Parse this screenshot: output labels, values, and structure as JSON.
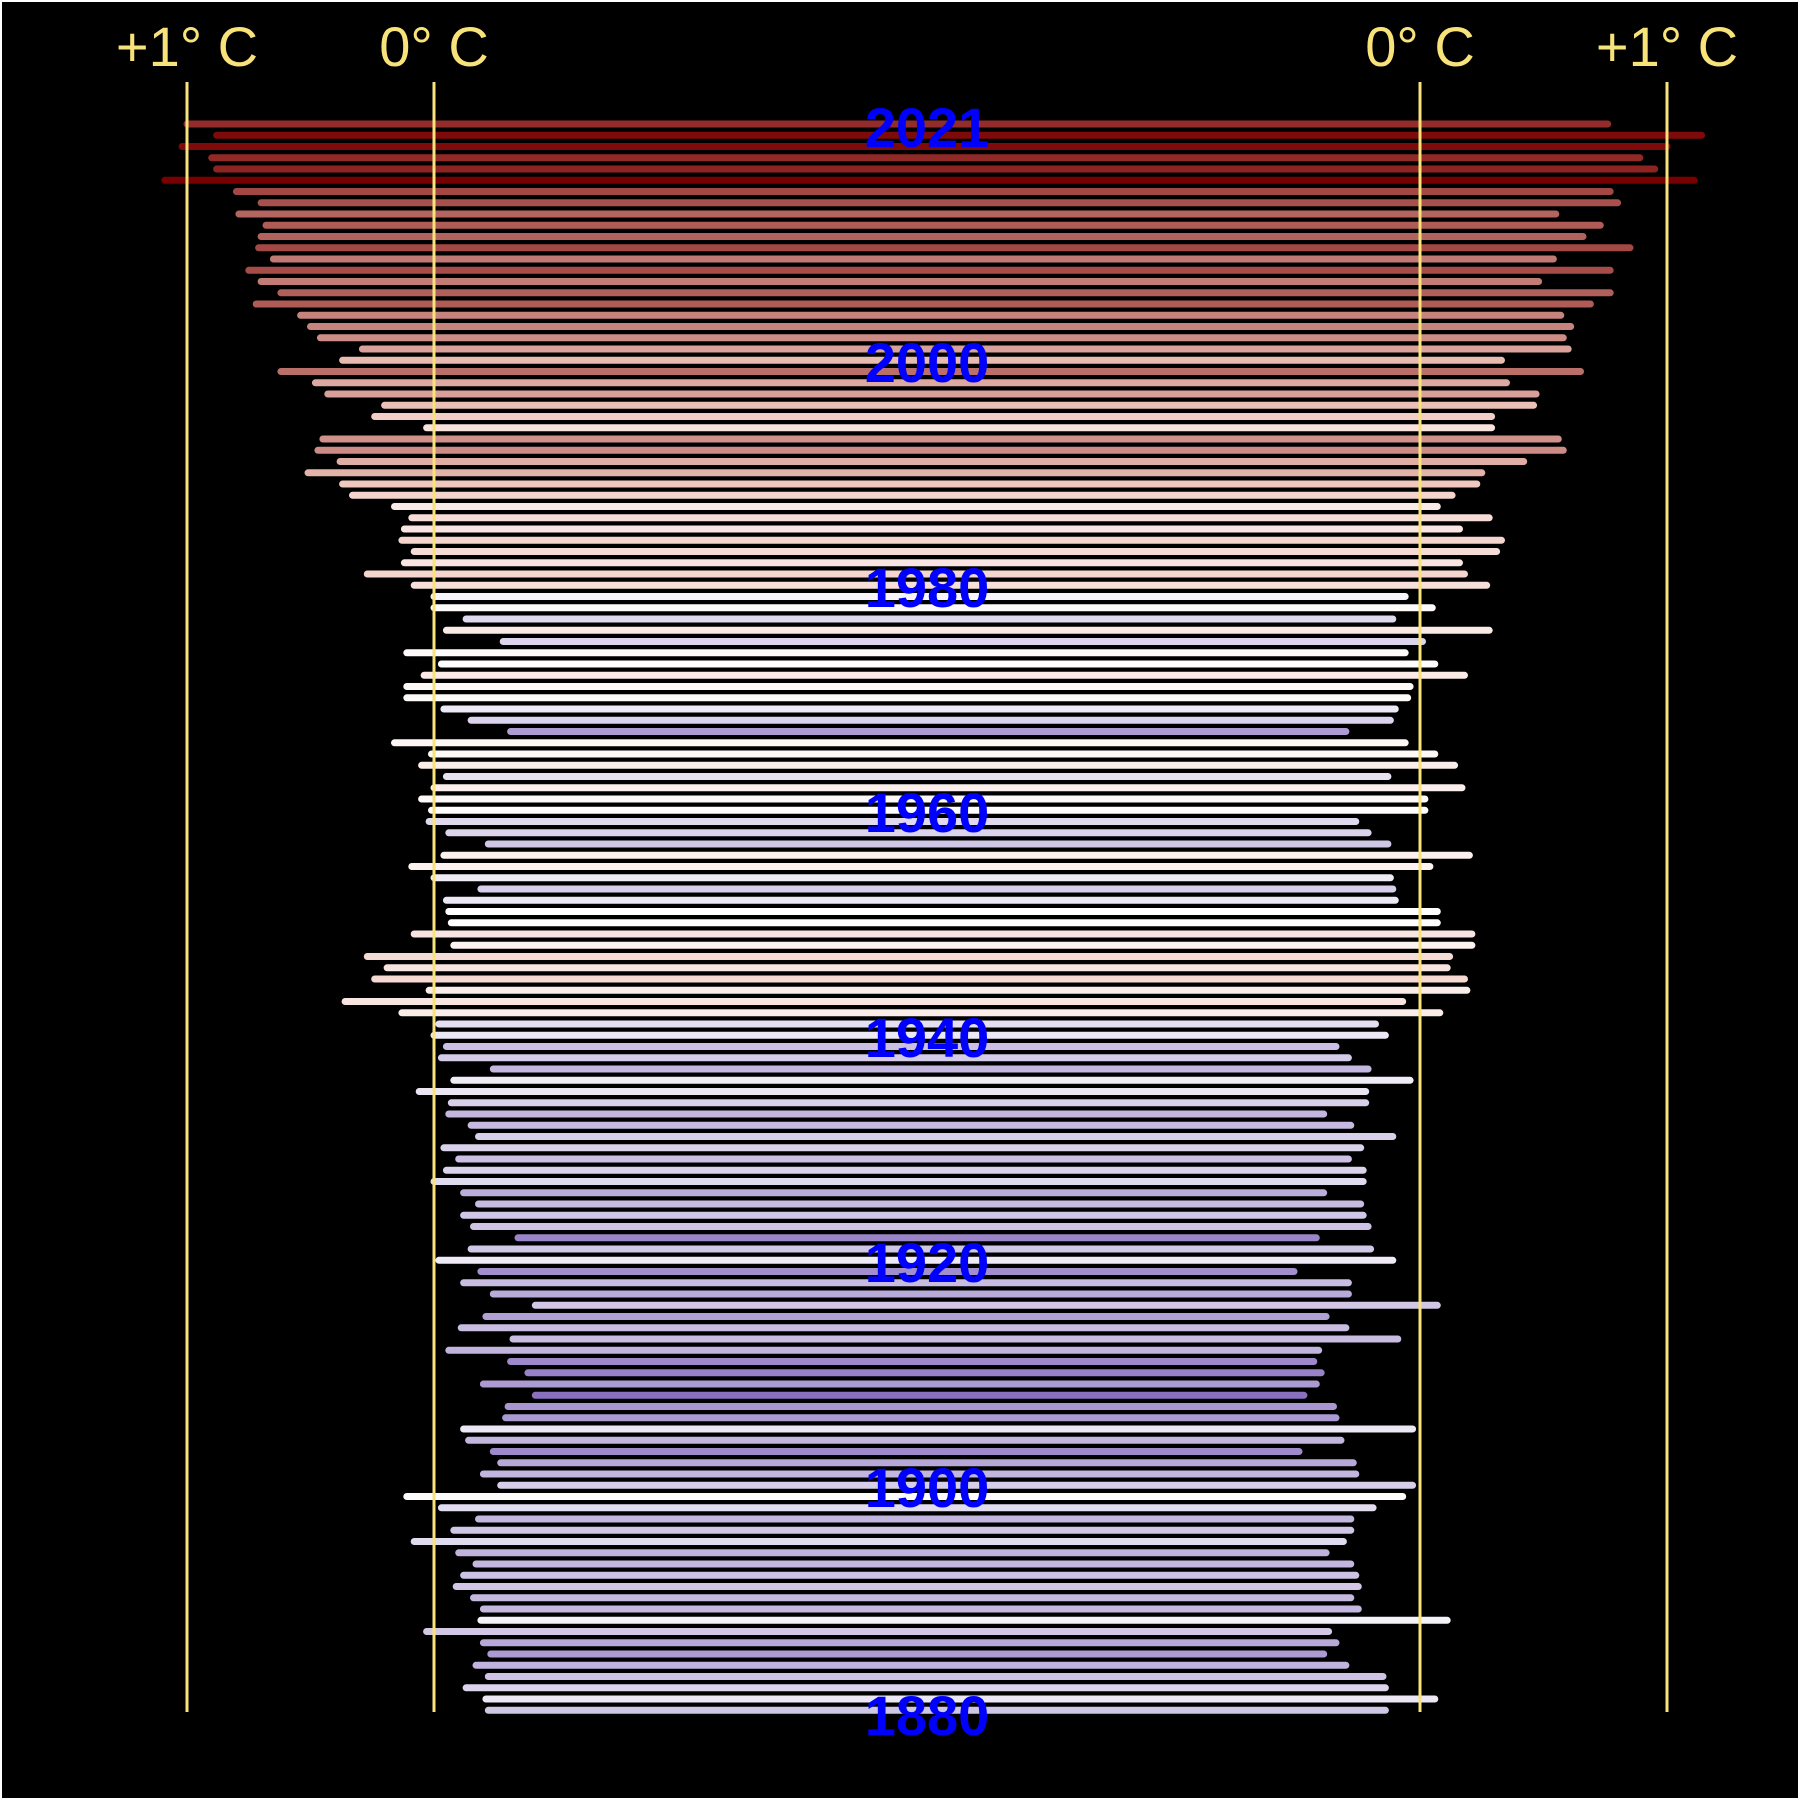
{
  "chart_data": {
    "type": "bar",
    "description_hidden": "",
    "reference_labels": {
      "left_plus1": "+1° C",
      "left_zero": "0° C",
      "right_zero": "0° C",
      "right_plus1": "+1° C"
    },
    "year_labels": [
      "2021",
      "2000",
      "1980",
      "1960",
      "1940",
      "1920",
      "1900",
      "1880"
    ],
    "colors": {
      "background": "#000000",
      "reference_line": "#f8e37a",
      "label": "#f8e37a",
      "year_label": "#0000ff"
    },
    "years": [
      2021,
      2020,
      2019,
      2018,
      2017,
      2016,
      2015,
      2014,
      2013,
      2012,
      2011,
      2010,
      2009,
      2008,
      2007,
      2006,
      2005,
      2004,
      2003,
      2002,
      2001,
      2000,
      1999,
      1998,
      1997,
      1996,
      1995,
      1994,
      1993,
      1992,
      1991,
      1990,
      1989,
      1988,
      1987,
      1986,
      1985,
      1984,
      1983,
      1982,
      1981,
      1980,
      1979,
      1978,
      1977,
      1976,
      1975,
      1974,
      1973,
      1972,
      1971,
      1970,
      1969,
      1968,
      1967,
      1966,
      1965,
      1964,
      1963,
      1962,
      1961,
      1960,
      1959,
      1958,
      1957,
      1956,
      1955,
      1954,
      1953,
      1952,
      1951,
      1950,
      1949,
      1948,
      1947,
      1946,
      1945,
      1944,
      1943,
      1942,
      1941,
      1940,
      1939,
      1938,
      1937,
      1936,
      1935,
      1934,
      1933,
      1932,
      1931,
      1930,
      1929,
      1928,
      1927,
      1926,
      1925,
      1924,
      1923,
      1922,
      1921,
      1920,
      1919,
      1918,
      1917,
      1916,
      1915,
      1914,
      1913,
      1912,
      1911,
      1910,
      1909,
      1908,
      1907,
      1906,
      1905,
      1904,
      1903,
      1902,
      1901,
      1900,
      1899,
      1898,
      1897,
      1896,
      1895,
      1894,
      1893,
      1892,
      1891,
      1890,
      1889,
      1888,
      1887,
      1886,
      1885,
      1884,
      1883,
      1882,
      1881,
      1880
    ],
    "left_anomaly": [
      1.0,
      0.88,
      1.02,
      0.9,
      0.88,
      1.09,
      0.8,
      0.7,
      0.79,
      0.68,
      0.7,
      0.71,
      0.65,
      0.75,
      0.7,
      0.62,
      0.72,
      0.54,
      0.5,
      0.46,
      0.29,
      0.37,
      0.62,
      0.48,
      0.43,
      0.2,
      0.24,
      0.03,
      0.45,
      0.47,
      0.38,
      0.51,
      0.37,
      0.33,
      0.16,
      0.09,
      0.12,
      0.13,
      0.08,
      0.12,
      0.27,
      0.08,
      0.0,
      0.0,
      -0.13,
      -0.05,
      -0.28,
      0.11,
      -0.03,
      0.04,
      0.11,
      0.11,
      -0.04,
      -0.15,
      -0.31,
      0.16,
      0.01,
      0.05,
      -0.05,
      0.0,
      0.05,
      0.01,
      0.02,
      -0.06,
      -0.22,
      -0.04,
      0.09,
      0.0,
      -0.19,
      -0.05,
      -0.06,
      -0.07,
      0.08,
      -0.08,
      0.27,
      0.19,
      0.24,
      0.02,
      0.36,
      0.13,
      -0.02,
      0.0,
      -0.05,
      -0.03,
      -0.24,
      -0.08,
      0.06,
      -0.07,
      -0.06,
      -0.15,
      -0.18,
      -0.04,
      -0.1,
      -0.05,
      0.0,
      -0.12,
      -0.18,
      -0.12,
      -0.16,
      -0.34,
      -0.15,
      -0.02,
      -0.19,
      -0.12,
      -0.24,
      -0.41,
      -0.21,
      -0.11,
      -0.32,
      -0.06,
      -0.31,
      -0.38,
      -0.2,
      -0.41,
      -0.3,
      -0.29,
      -0.12,
      -0.14,
      -0.24,
      -0.27,
      -0.2,
      -0.27,
      0.11,
      -0.03,
      -0.18,
      -0.08,
      0.08,
      -0.1,
      -0.17,
      -0.12,
      -0.09,
      -0.16,
      -0.2,
      -0.19,
      0.03,
      -0.2,
      -0.23,
      -0.17,
      -0.22,
      -0.13,
      -0.21,
      -0.22
    ],
    "right_anomaly": [
      0.76,
      1.14,
      1.0,
      0.89,
      0.95,
      1.11,
      0.77,
      0.8,
      0.55,
      0.73,
      0.66,
      0.85,
      0.54,
      0.77,
      0.48,
      0.77,
      0.69,
      0.57,
      0.61,
      0.58,
      0.6,
      0.33,
      0.65,
      0.35,
      0.47,
      0.46,
      0.29,
      0.29,
      0.56,
      0.58,
      0.42,
      0.25,
      0.23,
      0.13,
      0.07,
      0.28,
      0.16,
      0.33,
      0.31,
      0.16,
      0.18,
      0.27,
      -0.06,
      0.05,
      -0.11,
      0.28,
      0.01,
      -0.06,
      0.06,
      0.18,
      -0.04,
      -0.05,
      -0.1,
      -0.12,
      -0.3,
      -0.06,
      0.06,
      0.14,
      -0.13,
      0.17,
      0.02,
      0.02,
      -0.26,
      -0.21,
      -0.13,
      0.2,
      0.04,
      -0.12,
      -0.11,
      -0.1,
      0.07,
      0.07,
      0.21,
      0.21,
      0.12,
      0.11,
      0.18,
      0.19,
      -0.07,
      0.08,
      -0.18,
      -0.14,
      -0.34,
      -0.29,
      -0.21,
      -0.04,
      -0.22,
      -0.22,
      -0.39,
      -0.28,
      -0.11,
      -0.24,
      -0.29,
      -0.23,
      -0.23,
      -0.39,
      -0.24,
      -0.23,
      -0.21,
      -0.42,
      -0.2,
      -0.11,
      -0.51,
      -0.29,
      -0.29,
      0.07,
      -0.38,
      -0.3,
      -0.09,
      -0.41,
      -0.43,
      -0.4,
      -0.42,
      -0.47,
      -0.35,
      -0.34,
      -0.03,
      -0.32,
      -0.49,
      -0.27,
      -0.26,
      -0.03,
      -0.07,
      -0.19,
      -0.28,
      -0.28,
      -0.31,
      -0.38,
      -0.28,
      -0.26,
      -0.25,
      -0.28,
      -0.25,
      0.11,
      -0.37,
      -0.34,
      -0.39,
      -0.3,
      -0.15,
      -0.14,
      0.06,
      -0.14
    ]
  }
}
